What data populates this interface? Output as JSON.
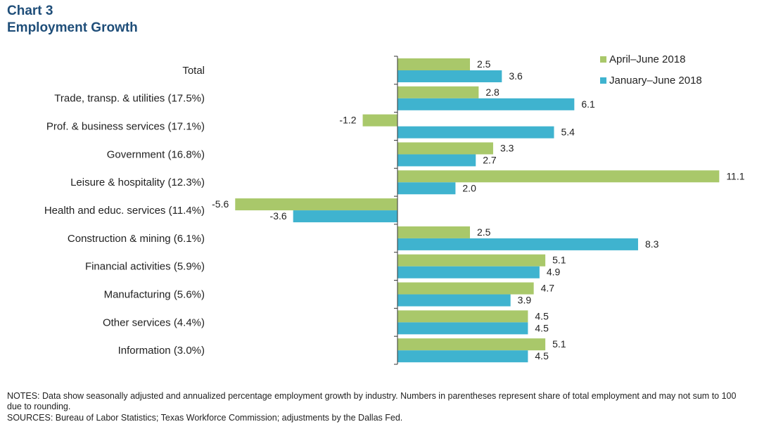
{
  "header": {
    "chart_number": "Chart 3",
    "title": "Employment  Growth"
  },
  "footer": {
    "notes": "NOTES:  Data show seasonally adjusted and annualized percentage employment  growth by industry. Numbers in parentheses represent share of total employment and may not sum to 100 due to rounding.",
    "sources": "SOURCES:  Bureau of Labor Statistics;  Texas Workforce Commission;  adjustments by the Dallas Fed."
  },
  "colors": {
    "april_june": "#a9c86a",
    "january_june": "#3fb3cf",
    "axis": "#333333",
    "text": "#222222"
  },
  "chart_data": {
    "type": "bar",
    "orientation": "horizontal",
    "title": "Employment  Growth",
    "xlabel": "",
    "ylabel": "",
    "xlim": [
      -6.5,
      11.3
    ],
    "grid": false,
    "legend_position": "top-right",
    "categories": [
      "Total",
      "Trade, transp. & utilities (17.5%)",
      "Prof. & business services (17.1%)",
      "Government (16.8%)",
      "Leisure & hospitality (12.3%)",
      "Health and educ. services (11.4%)",
      "Construction & mining (6.1%)",
      "Financial activities (5.9%)",
      "Manufacturing (5.6%)",
      "Other services (4.4%)",
      "Information (3.0%)"
    ],
    "series": [
      {
        "name": "April–June  2018",
        "values": [
          2.5,
          2.8,
          -1.2,
          3.3,
          11.1,
          -5.6,
          2.5,
          5.1,
          4.7,
          4.5,
          5.1
        ],
        "labels": [
          "2.5",
          "2.8",
          "-1.2",
          "3.3",
          "11.1",
          "-5.6",
          "2.5",
          "5.1",
          "4.7",
          "4.5",
          "5.1"
        ]
      },
      {
        "name": "January–June  2018",
        "values": [
          3.6,
          6.1,
          5.4,
          2.7,
          2.0,
          -3.6,
          8.3,
          4.9,
          3.9,
          4.5,
          4.5
        ],
        "labels": [
          "3.6",
          "6.1",
          "5.4",
          "2.7",
          "2.0",
          "-3.6",
          "8.3",
          "4.9",
          "3.9",
          "4.5",
          "4.5"
        ]
      }
    ]
  }
}
